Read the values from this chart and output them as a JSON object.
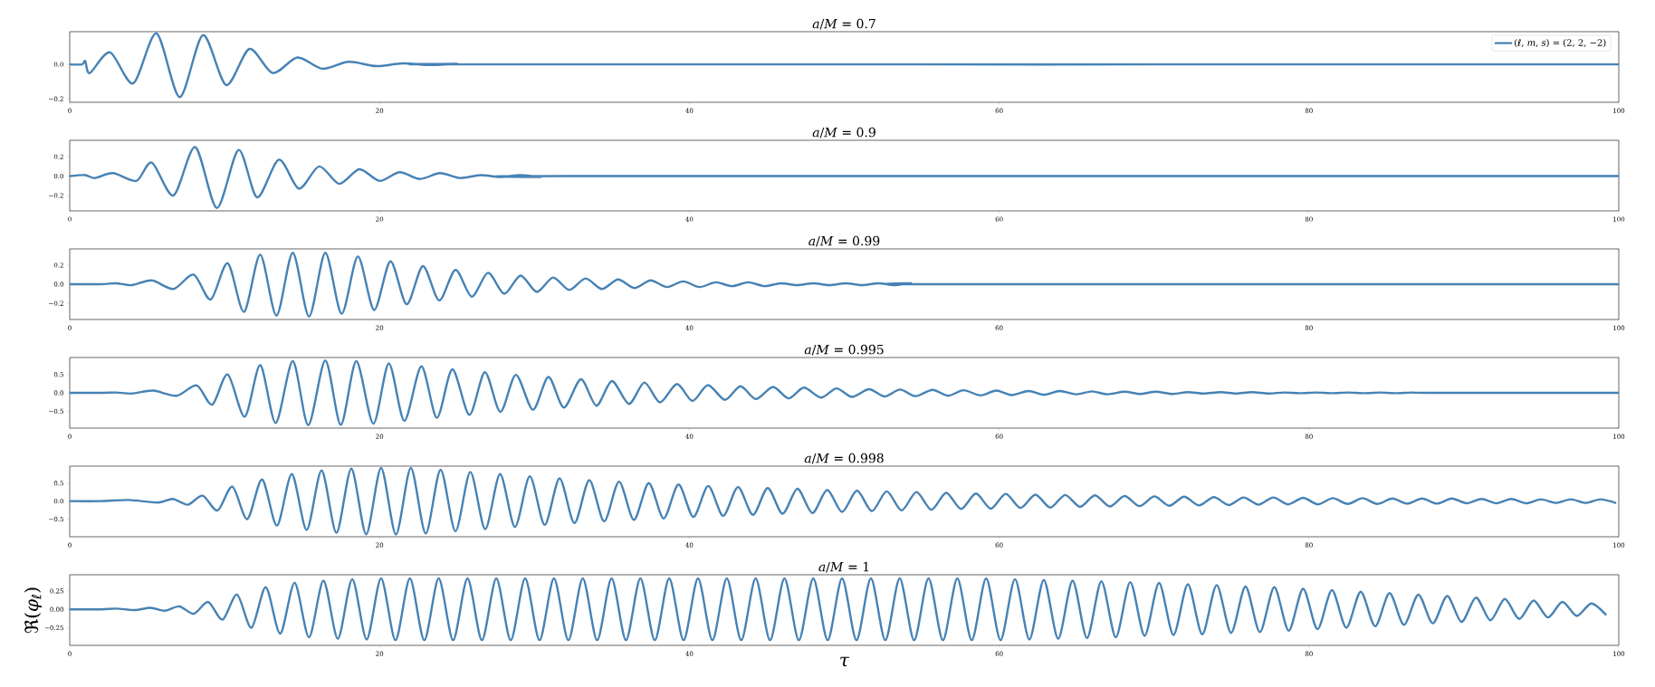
{
  "chart_data": [
    {
      "type": "line",
      "title": "*a*/*M* = 0.7",
      "xlim": [
        0,
        100
      ],
      "xticks": [
        0,
        20,
        40,
        60,
        80,
        100
      ],
      "ylim": [
        -0.22,
        0.19
      ],
      "yticks": [
        {
          "value": -0.2,
          "label": "−0.2"
        },
        {
          "value": 0,
          "label": "0.0"
        }
      ],
      "legend": "top right",
      "series": [
        {
          "name": "(*ℓ*, *m*, *s*) = (2, 2, −2)",
          "color": "#4682b4",
          "x": [
            0,
            0.8,
            1.0,
            1.3,
            2.6,
            4.1,
            5.6,
            7.1,
            8.6,
            10.1,
            11.6,
            13.1,
            14.7,
            16.3,
            18.0,
            19.8,
            21.5,
            23.3,
            25.0,
            27.0,
            100
          ],
          "values": [
            0,
            0,
            0.02,
            -0.05,
            0.07,
            -0.11,
            0.18,
            -0.19,
            0.17,
            -0.12,
            0.09,
            -0.05,
            0.04,
            -0.025,
            0.015,
            -0.01,
            0.006,
            -0.004,
            0.003,
            0,
            0
          ]
        }
      ]
    },
    {
      "type": "line",
      "title": "*a*/*M* = 0.9",
      "xlim": [
        0,
        100
      ],
      "xticks": [
        0,
        20,
        40,
        60,
        80,
        100
      ],
      "ylim": [
        -0.36,
        0.37
      ],
      "yticks": [
        {
          "value": -0.2,
          "label": "−0.2"
        },
        {
          "value": 0,
          "label": "0.0"
        },
        {
          "value": 0.2,
          "label": "0.2"
        }
      ],
      "series": [
        {
          "color": "#4682b4",
          "x": [
            0,
            1.0,
            1.6,
            2.8,
            4.3,
            5.3,
            6.7,
            8.1,
            9.5,
            10.9,
            12.1,
            13.5,
            14.8,
            16.1,
            17.4,
            18.7,
            20.0,
            21.3,
            22.6,
            23.9,
            25.2,
            26.5,
            27.8,
            29.1,
            30.4,
            32,
            100
          ],
          "values": [
            0,
            0.01,
            -0.02,
            0.03,
            -0.05,
            0.14,
            -0.2,
            0.3,
            -0.33,
            0.27,
            -0.22,
            0.17,
            -0.13,
            0.1,
            -0.08,
            0.07,
            -0.05,
            0.04,
            -0.03,
            0.03,
            -0.02,
            0.01,
            -0.01,
            0.01,
            -0.01,
            0,
            0
          ]
        }
      ]
    },
    {
      "type": "line",
      "title": "*a*/*M* = 0.99",
      "xlim": [
        0,
        100
      ],
      "xticks": [
        0,
        20,
        40,
        60,
        80,
        100
      ],
      "ylim": [
        -0.37,
        0.37
      ],
      "yticks": [
        {
          "value": -0.2,
          "label": "−0.2"
        },
        {
          "value": 0,
          "label": "0.0"
        },
        {
          "value": 0.2,
          "label": "0.2"
        }
      ],
      "series": [
        {
          "color": "#4682b4",
          "x": [
            0,
            2,
            3.0,
            4.0,
            5.3,
            6.7,
            8.0,
            9.1,
            10.2,
            11.25,
            12.3,
            13.35,
            14.4,
            15.45,
            16.5,
            17.55,
            18.6,
            19.65,
            20.7,
            21.75,
            22.8,
            23.85,
            24.9,
            25.95,
            27.0,
            28.05,
            29.1,
            30.15,
            31.2,
            32.25,
            33.3,
            34.35,
            35.4,
            36.45,
            37.5,
            38.55,
            39.6,
            40.65,
            41.7,
            42.75,
            43.8,
            44.85,
            45.9,
            46.95,
            48.0,
            49.05,
            50.1,
            51.15,
            52.2,
            53.25,
            54.3,
            56,
            100
          ],
          "values": [
            0,
            0,
            0.01,
            -0.01,
            0.04,
            -0.05,
            0.1,
            -0.16,
            0.22,
            -0.29,
            0.31,
            -0.33,
            0.33,
            -0.34,
            0.33,
            -0.31,
            0.29,
            -0.27,
            0.24,
            -0.21,
            0.19,
            -0.17,
            0.15,
            -0.13,
            0.12,
            -0.1,
            0.09,
            -0.08,
            0.07,
            -0.06,
            0.06,
            -0.05,
            0.05,
            -0.04,
            0.04,
            -0.03,
            0.03,
            -0.03,
            0.02,
            -0.02,
            0.02,
            -0.02,
            0.01,
            -0.01,
            0.01,
            -0.01,
            0.01,
            -0.01,
            0.01,
            -0.01,
            0.01,
            0,
            0
          ]
        }
      ]
    },
    {
      "type": "line",
      "title": "*a*/*M* = 0.995",
      "xlim": [
        0,
        100
      ],
      "xticks": [
        0,
        20,
        40,
        60,
        80,
        100
      ],
      "ylim": [
        -0.96,
        0.96
      ],
      "yticks": [
        {
          "value": -0.5,
          "label": "−0.5"
        },
        {
          "value": 0,
          "label": "0.0"
        },
        {
          "value": 0.5,
          "label": "0.5"
        }
      ],
      "series": [
        {
          "color": "#4682b4",
          "x": [
            0,
            2,
            3.0,
            4.0,
            5.4,
            6.9,
            8.2,
            9.2,
            10.2,
            11.3,
            12.3,
            13.3,
            14.4,
            15.4,
            16.5,
            17.5,
            18.5,
            19.6,
            20.6,
            21.6,
            22.7,
            23.7,
            24.7,
            25.8,
            26.8,
            27.8,
            28.8,
            29.9,
            30.9,
            31.9,
            33.0,
            34.0,
            35.0,
            36.1,
            37.1,
            38.1,
            39.2,
            40.2,
            41.2,
            42.3,
            43.3,
            44.3,
            45.4,
            46.4,
            47.4,
            48.5,
            49.5,
            50.5,
            51.6,
            52.6,
            53.6,
            54.6,
            55.7,
            56.7,
            57.7,
            58.8,
            59.8,
            60.8,
            61.9,
            62.9,
            63.9,
            65.0,
            66.0,
            67.0,
            68.1,
            69.1,
            70.1,
            71.2,
            72.2,
            73.2,
            74.3,
            75.3,
            76.3,
            77.4,
            78.4,
            79.4,
            80.5,
            81.5,
            82.5,
            83.6,
            84.6,
            85.6,
            86.7,
            88,
            100
          ],
          "values": [
            0,
            0,
            0.01,
            -0.02,
            0.06,
            -0.08,
            0.2,
            -0.32,
            0.5,
            -0.65,
            0.75,
            -0.82,
            0.86,
            -0.88,
            0.88,
            -0.87,
            0.86,
            -0.84,
            0.8,
            -0.76,
            0.72,
            -0.68,
            0.64,
            -0.6,
            0.56,
            -0.52,
            0.49,
            -0.46,
            0.43,
            -0.4,
            0.37,
            -0.35,
            0.32,
            -0.3,
            0.28,
            -0.26,
            0.24,
            -0.22,
            0.21,
            -0.19,
            0.18,
            -0.17,
            0.16,
            -0.15,
            0.14,
            -0.13,
            0.12,
            -0.11,
            0.1,
            -0.1,
            0.09,
            -0.09,
            0.08,
            -0.08,
            0.07,
            -0.07,
            0.06,
            -0.06,
            0.05,
            -0.05,
            0.05,
            -0.04,
            0.04,
            -0.04,
            0.03,
            -0.03,
            0.03,
            -0.03,
            0.02,
            -0.02,
            0.02,
            -0.02,
            0.02,
            -0.02,
            0.01,
            -0.01,
            0.01,
            -0.01,
            0.01,
            -0.01,
            0.01,
            -0.01,
            0.01,
            0,
            0
          ]
        }
      ]
    },
    {
      "type": "line",
      "title": "*a*/*M* = 0.998",
      "xlim": [
        0,
        100
      ],
      "xticks": [
        0,
        20,
        40,
        60,
        80,
        100
      ],
      "ylim": [
        -0.99,
        0.97
      ],
      "yticks": [
        {
          "value": -0.5,
          "label": "−0.5"
        },
        {
          "value": 0,
          "label": "0.0"
        },
        {
          "value": 0.5,
          "label": "0.5"
        }
      ],
      "series": [
        {
          "color": "#4682b4",
          "x": [
            0,
            2,
            3.8,
            5.7,
            6.66,
            7.62,
            8.58,
            9.54,
            10.5,
            11.46,
            12.42,
            13.38,
            14.34,
            15.3,
            16.26,
            17.22,
            18.18,
            19.14,
            20.1,
            21.06,
            22.02,
            22.98,
            23.94,
            24.9,
            25.86,
            26.82,
            27.78,
            28.74,
            29.7,
            30.66,
            31.62,
            32.58,
            33.54,
            34.5,
            35.46,
            36.42,
            37.38,
            38.34,
            39.3,
            40.26,
            41.22,
            42.18,
            43.14,
            44.1,
            45.06,
            46.02,
            46.98,
            47.94,
            48.9,
            49.86,
            50.82,
            51.78,
            52.74,
            53.7,
            54.66,
            55.62,
            56.58,
            57.54,
            58.5,
            59.46,
            60.42,
            61.38,
            62.34,
            63.3,
            64.26,
            65.22,
            66.18,
            67.14,
            68.1,
            69.06,
            70.02,
            70.98,
            71.94,
            72.9,
            73.86,
            74.82,
            75.78,
            76.74,
            77.7,
            78.66,
            79.62,
            80.58,
            81.54,
            82.5,
            83.46,
            84.42,
            85.38,
            86.34,
            87.3,
            88.26,
            89.22,
            90.18,
            91.14,
            92.1,
            93.06,
            94.02,
            94.98,
            95.94,
            96.9,
            97.86,
            98.82,
            99.78
          ],
          "values": [
            0,
            0,
            0.03,
            -0.04,
            0.06,
            -0.1,
            0.15,
            -0.26,
            0.4,
            -0.5,
            0.6,
            -0.68,
            0.75,
            -0.8,
            0.85,
            -0.88,
            0.9,
            -0.92,
            0.92,
            -0.93,
            0.92,
            -0.9,
            0.87,
            -0.84,
            0.81,
            -0.78,
            0.75,
            -0.72,
            0.69,
            -0.66,
            0.63,
            -0.61,
            0.58,
            -0.56,
            0.54,
            -0.52,
            0.5,
            -0.48,
            0.46,
            -0.44,
            0.42,
            -0.41,
            0.39,
            -0.38,
            0.36,
            -0.35,
            0.34,
            -0.33,
            0.31,
            -0.3,
            0.29,
            -0.28,
            0.27,
            -0.26,
            0.25,
            -0.24,
            0.23,
            -0.22,
            0.21,
            -0.21,
            0.2,
            -0.19,
            0.18,
            -0.18,
            0.17,
            -0.16,
            0.16,
            -0.15,
            0.14,
            -0.14,
            0.13,
            -0.13,
            0.12,
            -0.12,
            0.11,
            -0.11,
            0.1,
            -0.1,
            0.1,
            -0.09,
            0.09,
            -0.09,
            0.08,
            -0.08,
            0.08,
            -0.08,
            0.07,
            -0.07,
            0.07,
            -0.07,
            0.07,
            -0.06,
            0.06,
            -0.06,
            0.06,
            -0.06,
            0.05,
            -0.05,
            0.05,
            -0.05,
            0.05,
            -0.05
          ]
        }
      ]
    },
    {
      "type": "line",
      "title": "*a*/*M* = 1",
      "xlabel": "*τ*",
      "ylabel": "ℜ(*φ*$_{ℓ}$)",
      "xlim": [
        0,
        100
      ],
      "xticks": [
        0,
        20,
        40,
        60,
        80,
        100
      ],
      "ylim": [
        -0.49,
        0.47
      ],
      "yticks": [
        {
          "value": -0.25,
          "label": "−0.25"
        },
        {
          "value": 0,
          "label": "0.00"
        },
        {
          "value": 0.25,
          "label": "0.25"
        }
      ],
      "series": [
        {
          "color": "#4682b4",
          "x": [
            0,
            2,
            3.0,
            4.2,
            5.22,
            6.15,
            7.08,
            8.01,
            8.94,
            9.87,
            10.8,
            11.73,
            12.66,
            13.59,
            14.52,
            15.45,
            16.38,
            17.31,
            18.24,
            19.17,
            20.1,
            21.03,
            21.96,
            22.89,
            23.82,
            24.75,
            25.68,
            26.61,
            27.54,
            28.47,
            29.4,
            30.33,
            31.26,
            32.19,
            33.12,
            34.05,
            34.98,
            35.91,
            36.84,
            37.77,
            38.7,
            39.63,
            40.56,
            41.49,
            42.42,
            43.35,
            44.28,
            45.21,
            46.14,
            47.07,
            48.0,
            48.93,
            49.86,
            50.79,
            51.72,
            52.65,
            53.58,
            54.51,
            55.44,
            56.37,
            57.3,
            58.23,
            59.16,
            60.09,
            61.02,
            61.95,
            62.88,
            63.81,
            64.74,
            65.67,
            66.6,
            67.53,
            68.46,
            69.39,
            70.32,
            71.25,
            72.18,
            73.11,
            74.04,
            74.97,
            75.9,
            76.83,
            77.76,
            78.69,
            79.62,
            80.55,
            81.48,
            82.41,
            83.34,
            84.27,
            85.2,
            86.13,
            87.06,
            87.99,
            88.92,
            89.85,
            90.78,
            91.71,
            92.64,
            93.57,
            94.5,
            95.43,
            96.36,
            97.29,
            98.22,
            99.15
          ],
          "values": [
            0,
            0,
            0.01,
            -0.01,
            0.02,
            -0.02,
            0.04,
            -0.06,
            0.1,
            -0.14,
            0.2,
            -0.25,
            0.3,
            -0.33,
            0.36,
            -0.38,
            0.39,
            -0.4,
            0.41,
            -0.41,
            0.42,
            -0.42,
            0.42,
            -0.42,
            0.42,
            -0.42,
            0.42,
            -0.42,
            0.42,
            -0.42,
            0.42,
            -0.42,
            0.42,
            -0.42,
            0.42,
            -0.42,
            0.42,
            -0.42,
            0.42,
            -0.42,
            0.42,
            -0.42,
            0.42,
            -0.42,
            0.42,
            -0.42,
            0.42,
            -0.42,
            0.42,
            -0.42,
            0.42,
            -0.42,
            0.42,
            -0.42,
            0.42,
            -0.42,
            0.42,
            -0.42,
            0.42,
            -0.42,
            0.42,
            -0.42,
            0.42,
            -0.42,
            0.41,
            -0.41,
            0.4,
            -0.4,
            0.39,
            -0.39,
            0.38,
            -0.38,
            0.37,
            -0.36,
            0.36,
            -0.35,
            0.34,
            -0.34,
            0.33,
            -0.32,
            0.31,
            -0.31,
            0.3,
            -0.29,
            0.28,
            -0.27,
            0.26,
            -0.25,
            0.24,
            -0.23,
            0.22,
            -0.21,
            0.2,
            -0.19,
            0.18,
            -0.17,
            0.16,
            -0.15,
            0.14,
            -0.13,
            0.12,
            -0.11,
            0.1,
            -0.09,
            0.08,
            -0.07
          ]
        }
      ]
    }
  ]
}
